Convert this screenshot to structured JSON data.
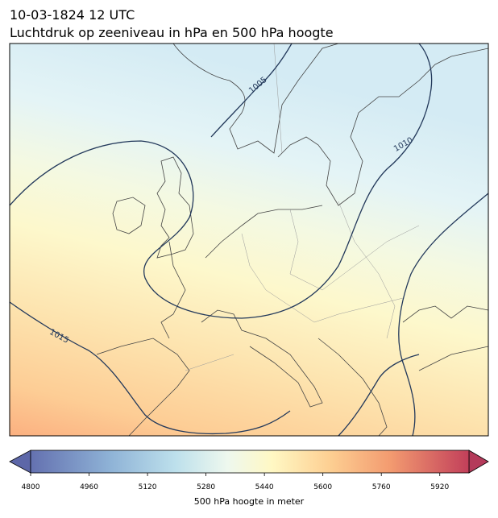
{
  "header": {
    "title": "10-03-1824 12 UTC",
    "subtitle": "Luchtdruk op zeeniveau in hPa en 500 hPa hoogte"
  },
  "isobars": [
    {
      "label": 1005
    },
    {
      "label": 1010
    },
    {
      "label": 1015
    }
  ],
  "colorbar": {
    "xlim": [
      4800,
      6000
    ],
    "xticks": [
      4800,
      4960,
      5120,
      5280,
      5440,
      5600,
      5760,
      5920
    ],
    "label": "500 hPa hoogte in meter"
  }
}
